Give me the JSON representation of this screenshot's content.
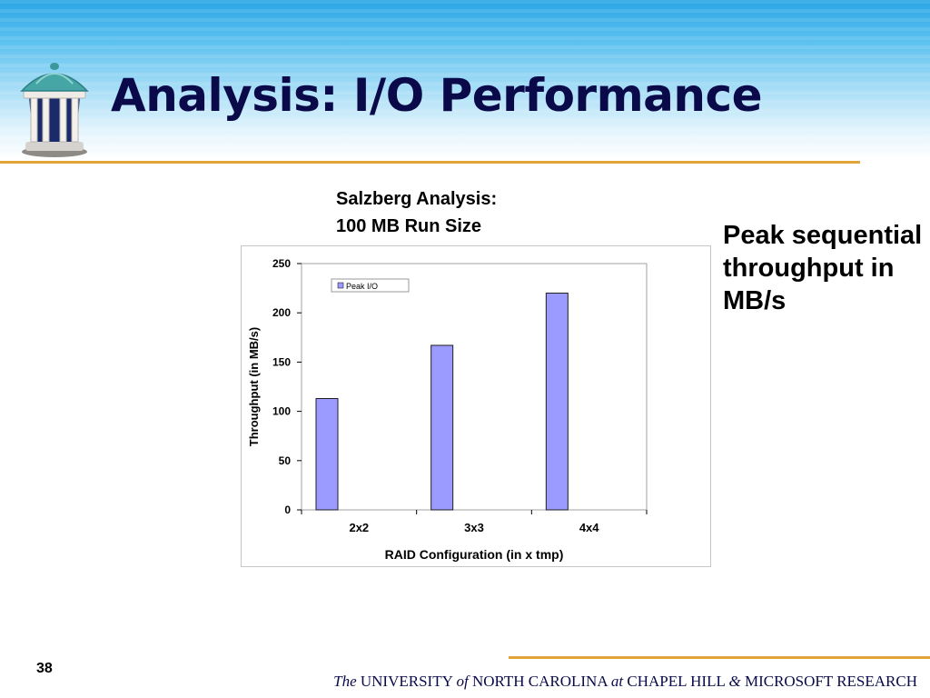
{
  "slide": {
    "title": "Analysis: I/O Performance",
    "page_number": "38",
    "caption_line1": "Salzberg Analysis:",
    "caption_line2": "100 MB Run Size",
    "side_note": "Peak sequential throughput in MB/s",
    "accent_color": "#e3a33b"
  },
  "footer": {
    "the": "The",
    "university": "UNIVERSITY",
    "of": "of",
    "north_carolina": "NORTH CAROLINA",
    "at": "at",
    "chapel_hill": "CHAPEL HILL",
    "amp": "&",
    "microsoft": "MICROSOFT RESEARCH"
  },
  "chart_data": {
    "type": "bar",
    "categories": [
      "2x2",
      "3x3",
      "4x4"
    ],
    "series": [
      {
        "name": "Peak I/O",
        "values": [
          113,
          167,
          220
        ],
        "color": "#9b9bff"
      }
    ],
    "title": "",
    "xlabel": "RAID Configuration (in x tmp)",
    "ylabel": "Throughput (in MB/s)",
    "ylim": [
      0,
      250
    ],
    "yticks": [
      0,
      50,
      100,
      150,
      200,
      250
    ],
    "grid": false,
    "legend_position": "top-left"
  }
}
